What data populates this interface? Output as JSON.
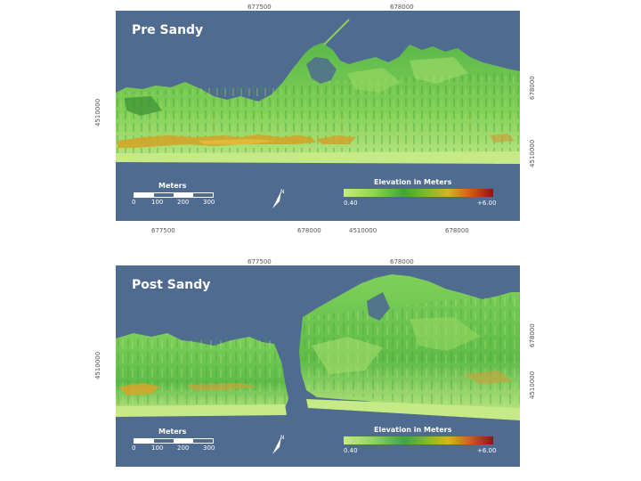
{
  "colors": {
    "water": "#4f6b8f",
    "land_light": "#b9e37a",
    "land_mid": "#6cc24a",
    "land_dark": "#2f8f3a",
    "dune": "#d1a52a"
  },
  "panels": [
    {
      "title": "Pre Sandy",
      "top_coords": [
        "677500",
        "678000"
      ],
      "bottom_coords": [
        "677500",
        "678000",
        "4510000",
        "678000"
      ],
      "left_coord": "4510000",
      "right_coords": [
        "678000",
        "4510000"
      ],
      "scale": {
        "label": "Meters",
        "ticks": [
          "0",
          "100",
          "200",
          "300"
        ]
      },
      "north_icon": "north-arrow-icon",
      "legend": {
        "title": "Elevation in Meters",
        "min": "0.40",
        "max": "+6.00"
      }
    },
    {
      "title": "Post Sandy",
      "top_coords": [
        "677500",
        "678000"
      ],
      "bottom_coords": [],
      "left_coord": "4510000",
      "right_coords": [
        "678000",
        "4510000"
      ],
      "scale": {
        "label": "Meters",
        "ticks": [
          "0",
          "100",
          "200",
          "300"
        ]
      },
      "north_icon": "north-arrow-icon",
      "legend": {
        "title": "Elevation in Meters",
        "min": "0.40",
        "max": "+6.00"
      }
    }
  ]
}
